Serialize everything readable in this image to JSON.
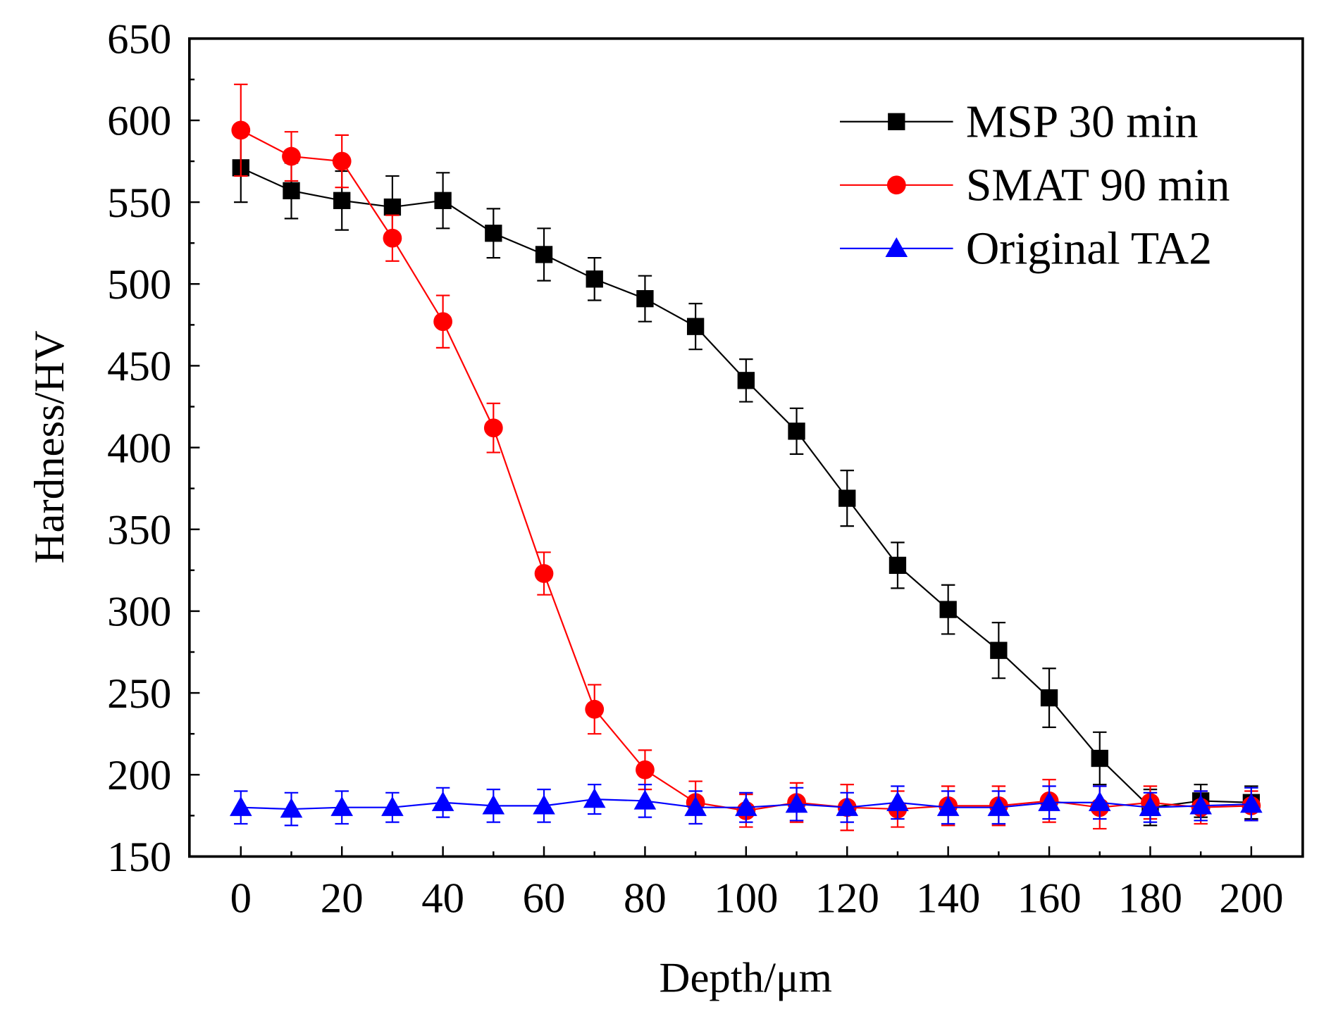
{
  "chart_data": {
    "type": "line",
    "xlabel": "Depth/μm",
    "ylabel": "Hardness/HV",
    "xlim": [
      -10,
      210
    ],
    "ylim": [
      150,
      650
    ],
    "xticks": [
      0,
      20,
      40,
      60,
      80,
      100,
      120,
      140,
      160,
      180,
      200
    ],
    "yticks": [
      150,
      200,
      250,
      300,
      350,
      400,
      450,
      500,
      550,
      600,
      650
    ],
    "grid": false,
    "legend_position": "top-right",
    "x": [
      0,
      10,
      20,
      30,
      40,
      50,
      60,
      70,
      80,
      90,
      100,
      110,
      120,
      130,
      140,
      150,
      160,
      170,
      180,
      190,
      200
    ],
    "series": [
      {
        "name": "MSP 30 min",
        "color": "#000000",
        "marker": "square",
        "values": [
          571,
          557,
          551,
          547,
          551,
          531,
          518,
          503,
          491,
          474,
          441,
          410,
          369,
          328,
          301,
          276,
          247,
          210,
          180,
          184,
          183
        ],
        "errors": [
          21,
          17,
          18,
          19,
          17,
          15,
          16,
          13,
          14,
          14,
          13,
          14,
          17,
          14,
          15,
          17,
          18,
          16,
          11,
          10,
          10
        ]
      },
      {
        "name": "SMAT 90 min",
        "color": "#ff0000",
        "marker": "circle",
        "values": [
          594,
          578,
          575,
          528,
          477,
          412,
          323,
          240,
          203,
          183,
          178,
          183,
          180,
          179,
          181,
          181,
          184,
          180,
          183,
          180,
          181
        ],
        "errors": [
          28,
          15,
          16,
          14,
          16,
          15,
          13,
          15,
          12,
          13,
          10,
          12,
          14,
          11,
          12,
          12,
          13,
          13,
          10,
          10,
          9
        ]
      },
      {
        "name": "Original TA2",
        "color": "#0000ff",
        "marker": "triangle",
        "values": [
          180,
          179,
          180,
          180,
          183,
          181,
          181,
          185,
          184,
          180,
          180,
          182,
          180,
          183,
          180,
          180,
          183,
          183,
          180,
          181,
          182
        ],
        "errors": [
          10,
          10,
          10,
          9,
          9,
          10,
          10,
          9,
          10,
          10,
          9,
          10,
          9,
          10,
          10,
          10,
          10,
          10,
          9,
          9,
          10
        ]
      }
    ]
  }
}
